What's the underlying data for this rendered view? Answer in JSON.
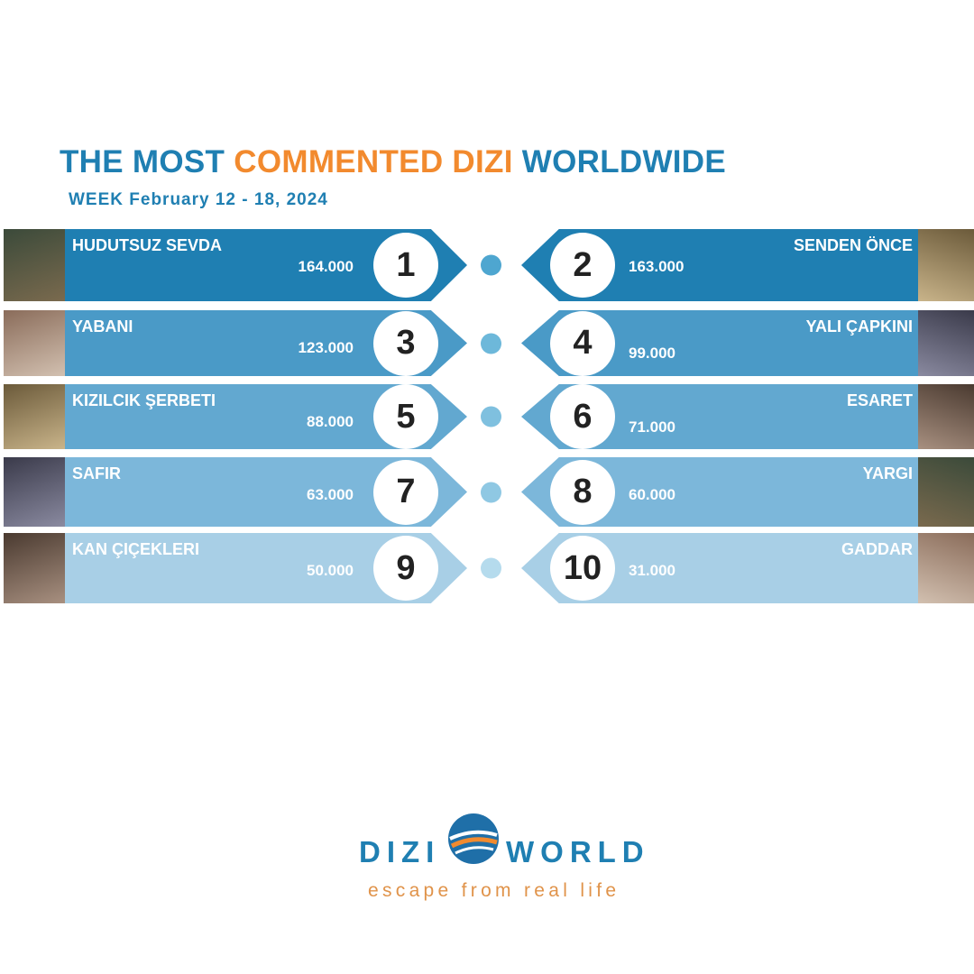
{
  "header": {
    "title_part1": "THE MOST ",
    "title_highlight": "COMMENTED DIZI",
    "title_part2": " WORLDWIDE",
    "subtitle": "WEEK February 12 - 18, 2024"
  },
  "colors": {
    "primary": "#1f7fb2",
    "accent": "#f28a2e",
    "row_colors": [
      "#1f7fb2",
      "#4a9ac7",
      "#62a8d0",
      "#7cb7da",
      "#a8cfe6"
    ],
    "dot_colors": [
      "#4ea6d0",
      "#6db8da",
      "#7fc0df",
      "#8fc8e3",
      "#b5dbed"
    ]
  },
  "rankings": [
    {
      "rank": "1",
      "title": "HUDUTSUZ SEVDA",
      "comments": "164.000"
    },
    {
      "rank": "2",
      "title": "SENDEN ÖNCE",
      "comments": "163.000"
    },
    {
      "rank": "3",
      "title": "YABANI",
      "comments": "123.000"
    },
    {
      "rank": "4",
      "title": "YALI ÇAPKINI",
      "comments": "99.000"
    },
    {
      "rank": "5",
      "title": "KIZILCIK ŞERBETI",
      "comments": "88.000"
    },
    {
      "rank": "6",
      "title": "ESARET",
      "comments": "71.000"
    },
    {
      "rank": "7",
      "title": "SAFIR",
      "comments": "63.000"
    },
    {
      "rank": "8",
      "title": "YARGI",
      "comments": "60.000"
    },
    {
      "rank": "9",
      "title": "KAN ÇIÇEKLERI",
      "comments": "50.000"
    },
    {
      "rank": "10",
      "title": "GADDAR",
      "comments": "31.000"
    }
  ],
  "logo": {
    "word1": "DIZI",
    "word2": "WORLD",
    "tagline": "escape from real life"
  }
}
